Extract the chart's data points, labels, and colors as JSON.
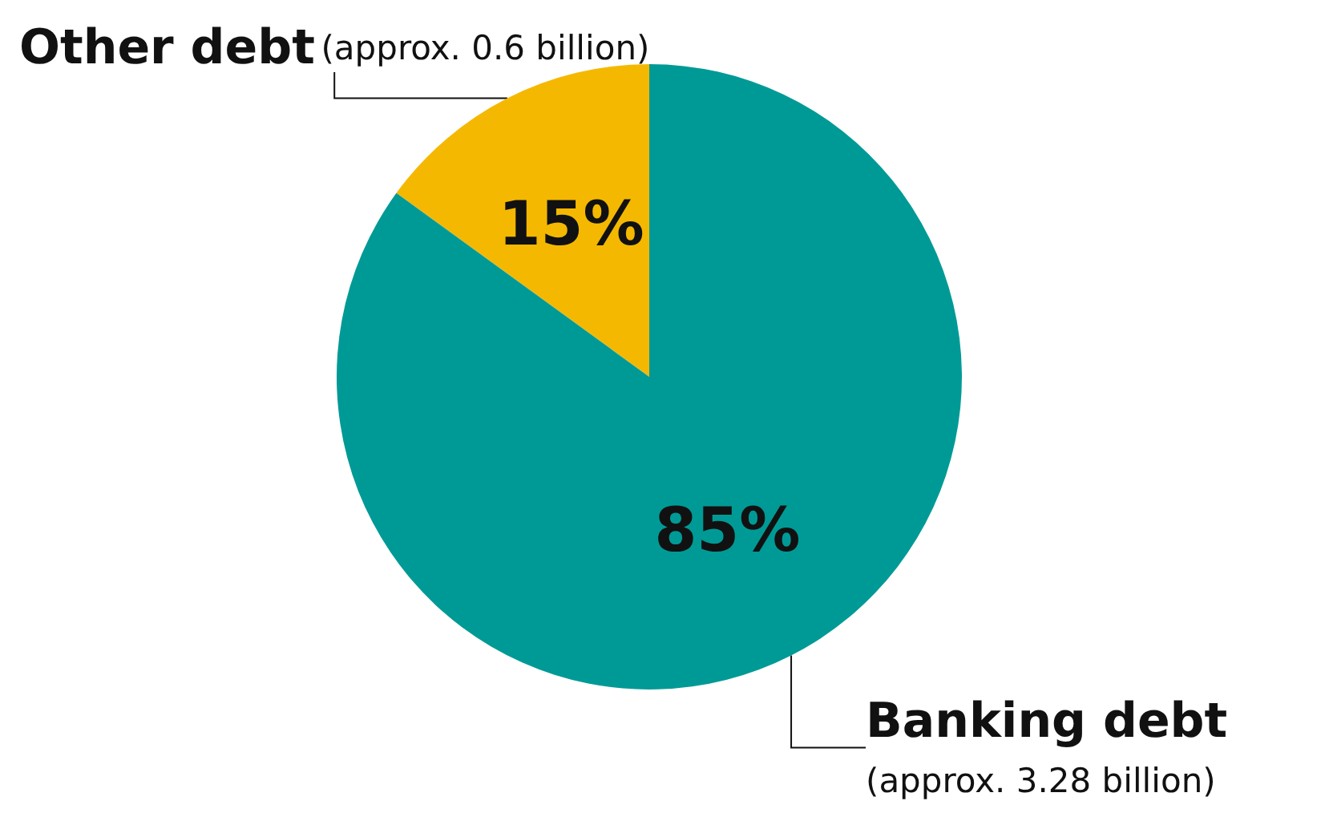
{
  "chart_data": {
    "type": "pie",
    "categories": [
      "Other debt",
      "Banking debt"
    ],
    "values": [
      15,
      85
    ],
    "colors": [
      "#f5b800",
      "#009a96"
    ],
    "value_labels": [
      "15%",
      "85%"
    ],
    "annotations": [
      "(approx. 0.6 billion)",
      "(approx. 3.28 billion)"
    ],
    "legend": false
  }
}
